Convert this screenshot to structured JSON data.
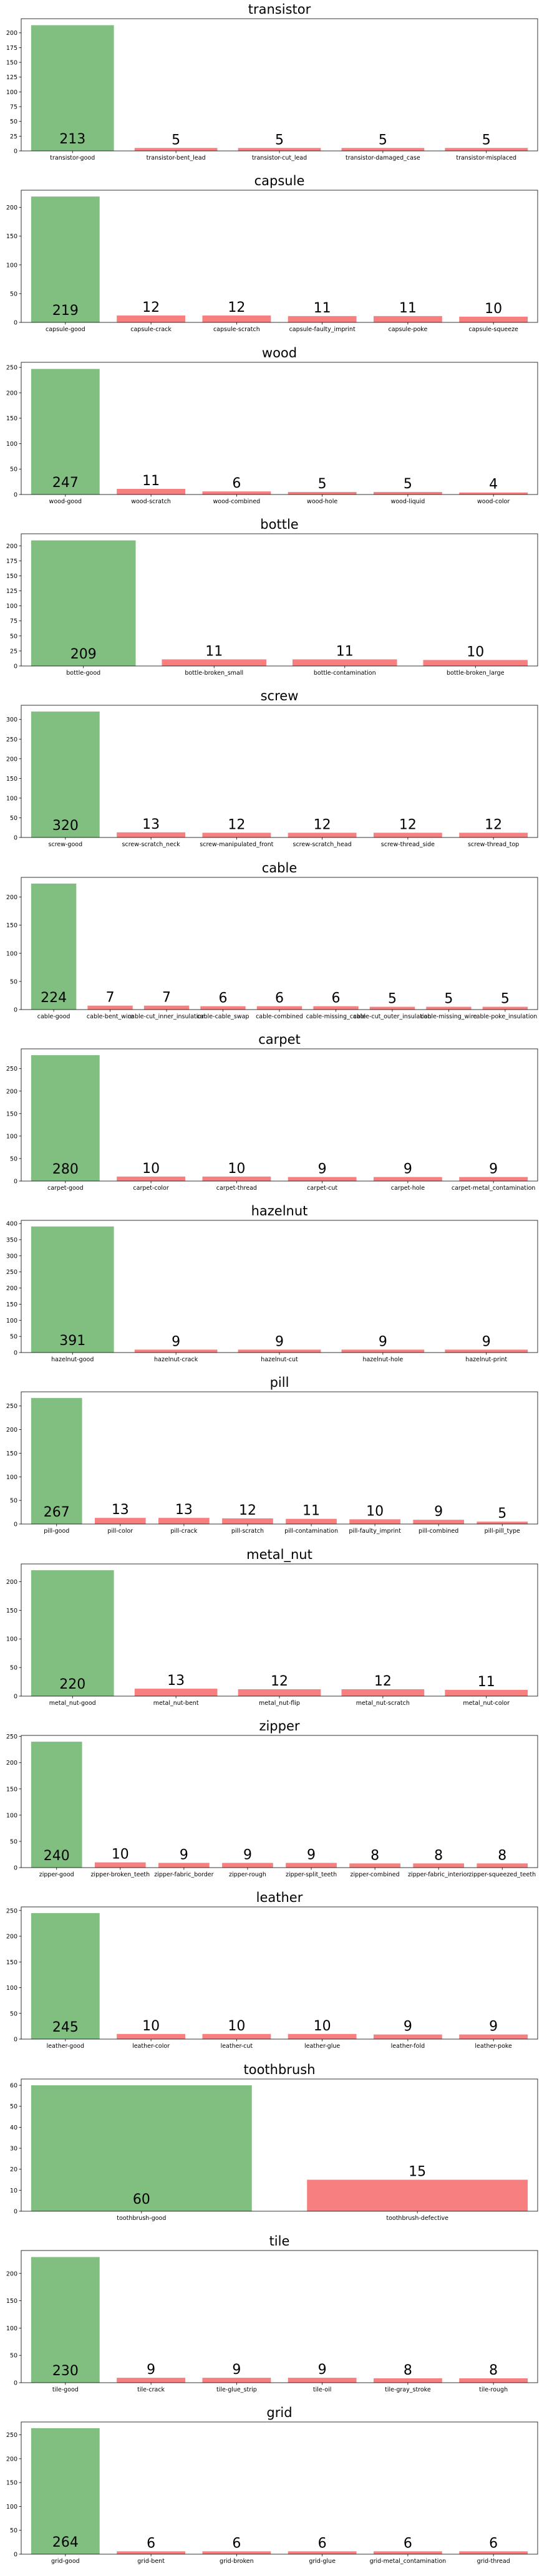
{
  "colors": {
    "good": "#80bf80",
    "defect": "#f77f7f",
    "axis": "#000000"
  },
  "chart_data": [
    {
      "type": "bar",
      "title": "transistor",
      "ylim": [
        0,
        224
      ],
      "yticks": [
        0,
        25,
        50,
        75,
        100,
        125,
        150,
        175,
        200
      ],
      "categories": [
        "transistor-good",
        "transistor-bent_lead",
        "transistor-cut_lead",
        "transistor-damaged_case",
        "transistor-misplaced"
      ],
      "values": [
        213,
        5,
        5,
        5,
        5
      ]
    },
    {
      "type": "bar",
      "title": "capsule",
      "ylim": [
        0,
        230
      ],
      "yticks": [
        0,
        50,
        100,
        150,
        200
      ],
      "categories": [
        "capsule-good",
        "capsule-crack",
        "capsule-scratch",
        "capsule-faulty_imprint",
        "capsule-poke",
        "capsule-squeeze"
      ],
      "values": [
        219,
        12,
        12,
        11,
        11,
        10
      ]
    },
    {
      "type": "bar",
      "title": "wood",
      "ylim": [
        0,
        260
      ],
      "yticks": [
        0,
        50,
        100,
        150,
        200,
        250
      ],
      "categories": [
        "wood-good",
        "wood-scratch",
        "wood-combined",
        "wood-hole",
        "wood-liquid",
        "wood-color"
      ],
      "values": [
        247,
        11,
        6,
        5,
        5,
        4
      ]
    },
    {
      "type": "bar",
      "title": "bottle",
      "ylim": [
        0,
        220
      ],
      "yticks": [
        0,
        25,
        50,
        75,
        100,
        125,
        150,
        175,
        200
      ],
      "categories": [
        "bottle-good",
        "bottle-broken_small",
        "bottle-contamination",
        "bottle-broken_large"
      ],
      "values": [
        209,
        11,
        11,
        10
      ]
    },
    {
      "type": "bar",
      "title": "screw",
      "ylim": [
        0,
        336
      ],
      "yticks": [
        0,
        50,
        100,
        150,
        200,
        250,
        300
      ],
      "categories": [
        "screw-good",
        "screw-scratch_neck",
        "screw-manipulated_front",
        "screw-scratch_head",
        "screw-thread_side",
        "screw-thread_top"
      ],
      "values": [
        320,
        13,
        12,
        12,
        12,
        12
      ]
    },
    {
      "type": "bar",
      "title": "cable",
      "ylim": [
        0,
        235
      ],
      "yticks": [
        0,
        50,
        100,
        150,
        200
      ],
      "categories": [
        "cable-good",
        "cable-bent_wire",
        "cable-cut_inner_insulation",
        "cable-cable_swap",
        "cable-combined",
        "cable-missing_cable",
        "cable-cut_outer_insulation",
        "cable-missing_wire",
        "cable-poke_insulation"
      ],
      "values": [
        224,
        7,
        7,
        6,
        6,
        6,
        5,
        5,
        5
      ]
    },
    {
      "type": "bar",
      "title": "carpet",
      "ylim": [
        0,
        294
      ],
      "yticks": [
        0,
        50,
        100,
        150,
        200,
        250
      ],
      "categories": [
        "carpet-good",
        "carpet-color",
        "carpet-thread",
        "carpet-cut",
        "carpet-hole",
        "carpet-metal_contamination"
      ],
      "values": [
        280,
        10,
        10,
        9,
        9,
        9
      ]
    },
    {
      "type": "bar",
      "title": "hazelnut",
      "ylim": [
        0,
        410
      ],
      "yticks": [
        0,
        50,
        100,
        150,
        200,
        250,
        300,
        350,
        400
      ],
      "categories": [
        "hazelnut-good",
        "hazelnut-crack",
        "hazelnut-cut",
        "hazelnut-hole",
        "hazelnut-print"
      ],
      "values": [
        391,
        9,
        9,
        9,
        9
      ]
    },
    {
      "type": "bar",
      "title": "pill",
      "ylim": [
        0,
        280
      ],
      "yticks": [
        0,
        50,
        100,
        150,
        200,
        250
      ],
      "categories": [
        "pill-good",
        "pill-color",
        "pill-crack",
        "pill-scratch",
        "pill-contamination",
        "pill-faulty_imprint",
        "pill-combined",
        "pill-pill_type"
      ],
      "values": [
        267,
        13,
        13,
        12,
        11,
        10,
        9,
        5
      ]
    },
    {
      "type": "bar",
      "title": "metal_nut",
      "ylim": [
        0,
        231
      ],
      "yticks": [
        0,
        50,
        100,
        150,
        200
      ],
      "categories": [
        "metal_nut-good",
        "metal_nut-bent",
        "metal_nut-flip",
        "metal_nut-scratch",
        "metal_nut-color"
      ],
      "values": [
        220,
        13,
        12,
        12,
        11
      ]
    },
    {
      "type": "bar",
      "title": "zipper",
      "ylim": [
        0,
        252
      ],
      "yticks": [
        0,
        50,
        100,
        150,
        200,
        250
      ],
      "categories": [
        "zipper-good",
        "zipper-broken_teeth",
        "zipper-fabric_border",
        "zipper-rough",
        "zipper-split_teeth",
        "zipper-combined",
        "zipper-fabric_interior",
        "zipper-squeezed_teeth"
      ],
      "values": [
        240,
        10,
        9,
        9,
        9,
        8,
        8,
        8
      ]
    },
    {
      "type": "bar",
      "title": "leather",
      "ylim": [
        0,
        257
      ],
      "yticks": [
        0,
        50,
        100,
        150,
        200,
        250
      ],
      "categories": [
        "leather-good",
        "leather-color",
        "leather-cut",
        "leather-glue",
        "leather-fold",
        "leather-poke"
      ],
      "values": [
        245,
        10,
        10,
        10,
        9,
        9
      ]
    },
    {
      "type": "bar",
      "title": "toothbrush",
      "ylim": [
        0,
        63
      ],
      "yticks": [
        0,
        10,
        20,
        30,
        40,
        50,
        60
      ],
      "categories": [
        "toothbrush-good",
        "toothbrush-defective"
      ],
      "values": [
        60,
        15
      ]
    },
    {
      "type": "bar",
      "title": "tile",
      "ylim": [
        0,
        242
      ],
      "yticks": [
        0,
        50,
        100,
        150,
        200
      ],
      "categories": [
        "tile-good",
        "tile-crack",
        "tile-glue_strip",
        "tile-oil",
        "tile-gray_stroke",
        "tile-rough"
      ],
      "values": [
        230,
        9,
        9,
        9,
        8,
        8
      ]
    },
    {
      "type": "bar",
      "title": "grid",
      "ylim": [
        0,
        277
      ],
      "yticks": [
        0,
        50,
        100,
        150,
        200,
        250
      ],
      "categories": [
        "grid-good",
        "grid-bent",
        "grid-broken",
        "grid-glue",
        "grid-metal_contamination",
        "grid-thread"
      ],
      "values": [
        264,
        6,
        6,
        6,
        6,
        6
      ]
    }
  ]
}
